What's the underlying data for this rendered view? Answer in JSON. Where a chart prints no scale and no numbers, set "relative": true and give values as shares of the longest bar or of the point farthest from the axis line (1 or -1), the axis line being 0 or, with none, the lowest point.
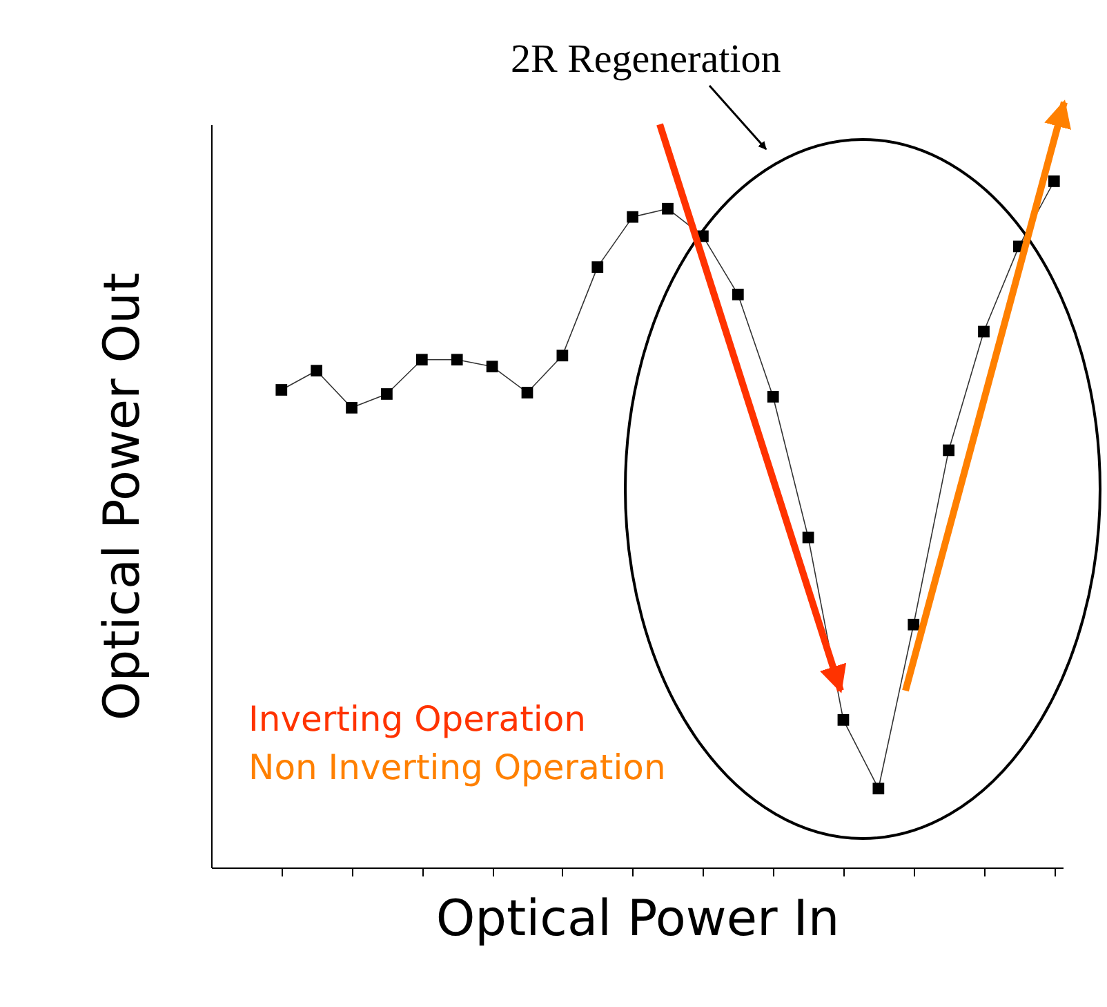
{
  "chart_data": {
    "type": "line",
    "relative": true,
    "xlabel": "Optical Power In",
    "ylabel": "Optical Power Out",
    "categories": [
      null,
      null,
      null,
      null,
      null,
      null,
      null,
      null,
      null,
      null,
      null,
      null,
      null,
      null,
      null,
      null,
      null,
      null,
      null,
      null,
      null,
      null,
      null
    ],
    "series": [
      {
        "color": "#000000",
        "values": [
          0.696,
          0.724,
          0.67,
          0.69,
          0.74,
          0.74,
          0.73,
          0.692,
          0.746,
          0.875,
          0.948,
          0.96,
          0.92,
          0.835,
          0.686,
          0.481,
          0.215,
          0.115,
          0.354,
          0.608,
          0.781,
          0.905,
          1
        ]
      }
    ],
    "marker": "square",
    "line_style": "solid",
    "legend": false,
    "grid": false,
    "annotations": [
      "2R Regeneration",
      "Inverting Operation",
      "Non Inverting Operation"
    ]
  }
}
